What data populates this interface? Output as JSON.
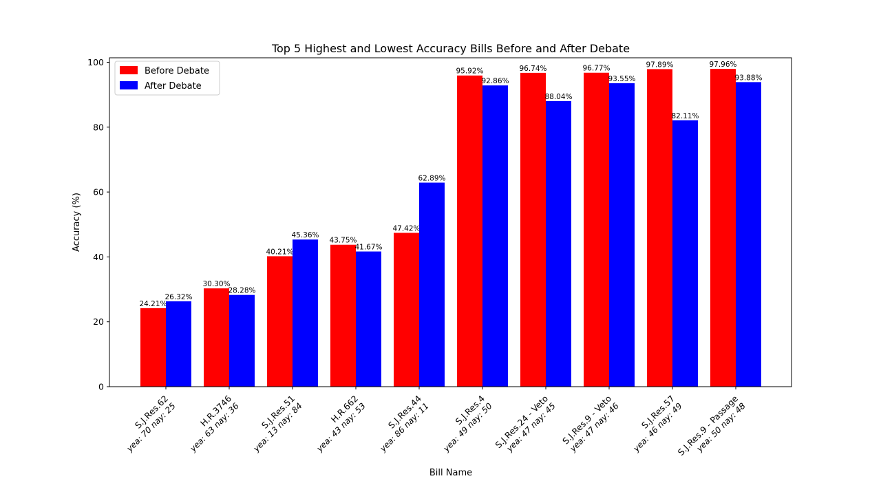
{
  "chart_data": {
    "type": "bar",
    "title": "Top 5 Highest and Lowest Accuracy Bills Before and After Debate",
    "xlabel": "Bill Name",
    "ylabel": "Accuracy (%)",
    "ylim": [
      0,
      100
    ],
    "yticks": [
      0,
      20,
      40,
      60,
      80,
      100
    ],
    "legend_position": "top-left",
    "categories": [
      {
        "name": "S.J.Res.62",
        "votes": "yea: 70 nay: 25"
      },
      {
        "name": "H.R.3746",
        "votes": "yea: 63 nay: 36"
      },
      {
        "name": "S.J.Res.51",
        "votes": "yea: 13 nay: 84"
      },
      {
        "name": "H.R.662",
        "votes": "yea: 43 nay: 53"
      },
      {
        "name": "S.J.Res.44",
        "votes": "yea: 86 nay: 11"
      },
      {
        "name": "S.J.Res.4",
        "votes": "yea: 49 nay: 50"
      },
      {
        "name": "S.J.Res.24 - Veto",
        "votes": "yea: 47 nay: 45"
      },
      {
        "name": "S.J.Res.9 - Veto",
        "votes": "yea: 47 nay: 46"
      },
      {
        "name": "S.J.Res.57",
        "votes": "yea: 46 nay: 49"
      },
      {
        "name": "S.J.Res.9 - Passage",
        "votes": "yea: 50 nay: 48"
      }
    ],
    "series": [
      {
        "name": "Before Debate",
        "color": "#ff0000",
        "values": [
          24.21,
          30.3,
          40.21,
          43.75,
          47.42,
          95.92,
          96.74,
          96.77,
          97.89,
          97.96
        ],
        "labels": [
          "24.21%",
          "30.30%",
          "40.21%",
          "43.75%",
          "47.42%",
          "95.92%",
          "96.74%",
          "96.77%",
          "97.89%",
          "97.96%"
        ]
      },
      {
        "name": "After Debate",
        "color": "#0000ff",
        "values": [
          26.32,
          28.28,
          45.36,
          41.67,
          62.89,
          92.86,
          88.04,
          93.55,
          82.11,
          93.88
        ],
        "labels": [
          "26.32%",
          "28.28%",
          "45.36%",
          "41.67%",
          "62.89%",
          "92.86%",
          "88.04%",
          "93.55%",
          "82.11%",
          "93.88%"
        ]
      }
    ]
  }
}
